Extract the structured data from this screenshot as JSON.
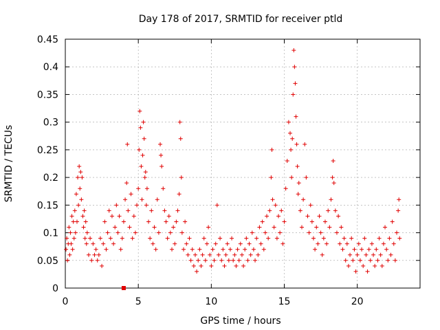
{
  "chart_data": {
    "type": "scatter",
    "title": "Day 178 of 2017, SRMTID for receiver ptld",
    "xlabel": "GPS time / hours",
    "ylabel": "SRMTID / TECUs",
    "xlim": [
      0,
      24.3
    ],
    "ylim": [
      0,
      0.45
    ],
    "xticks": [
      0,
      5,
      10,
      15,
      20
    ],
    "xtick_labels": [
      "0",
      "5",
      "10",
      "15",
      "20"
    ],
    "yticks": [
      0,
      0.05,
      0.1,
      0.15,
      0.2,
      0.25,
      0.3,
      0.35,
      0.4,
      0.45
    ],
    "ytick_labels": [
      "0",
      "0.05",
      "0.1",
      "0.15",
      "0.2",
      "0.25",
      "0.3",
      "0.35",
      "0.4",
      "0.45"
    ],
    "grid": true,
    "marker_color": "#e00000",
    "series": [
      {
        "name": "SRMTID",
        "marker": "plus",
        "points": [
          [
            0.05,
            0.07
          ],
          [
            0.1,
            0.09
          ],
          [
            0.15,
            0.05
          ],
          [
            0.2,
            0.08
          ],
          [
            0.25,
            0.11
          ],
          [
            0.3,
            0.06
          ],
          [
            0.35,
            0.1
          ],
          [
            0.4,
            0.08
          ],
          [
            0.45,
            0.13
          ],
          [
            0.5,
            0.07
          ],
          [
            0.55,
            0.12
          ],
          [
            0.6,
            0.09
          ],
          [
            0.65,
            0.14
          ],
          [
            0.7,
            0.1
          ],
          [
            0.75,
            0.17
          ],
          [
            0.8,
            0.12
          ],
          [
            0.85,
            0.2
          ],
          [
            0.9,
            0.15
          ],
          [
            0.95,
            0.22
          ],
          [
            1.0,
            0.18
          ],
          [
            1.05,
            0.21
          ],
          [
            1.1,
            0.16
          ],
          [
            1.15,
            0.2
          ],
          [
            1.2,
            0.13
          ],
          [
            1.25,
            0.11
          ],
          [
            1.3,
            0.14
          ],
          [
            1.35,
            0.09
          ],
          [
            1.4,
            0.12
          ],
          [
            1.45,
            0.08
          ],
          [
            1.5,
            0.1
          ],
          [
            1.6,
            0.06
          ],
          [
            1.7,
            0.09
          ],
          [
            1.8,
            0.05
          ],
          [
            1.9,
            0.08
          ],
          [
            2.0,
            0.06
          ],
          [
            2.1,
            0.07
          ],
          [
            2.2,
            0.05
          ],
          [
            2.3,
            0.06
          ],
          [
            2.4,
            0.09
          ],
          [
            2.5,
            0.04
          ],
          [
            2.6,
            0.08
          ],
          [
            2.7,
            0.12
          ],
          [
            2.8,
            0.07
          ],
          [
            2.9,
            0.1
          ],
          [
            3.0,
            0.14
          ],
          [
            3.1,
            0.09
          ],
          [
            3.2,
            0.13
          ],
          [
            3.3,
            0.08
          ],
          [
            3.4,
            0.11
          ],
          [
            3.5,
            0.15
          ],
          [
            3.6,
            0.1
          ],
          [
            3.7,
            0.13
          ],
          [
            3.8,
            0.07
          ],
          [
            3.9,
            0.09
          ],
          [
            4.0,
            0.12
          ],
          [
            4.1,
            0.16
          ],
          [
            4.2,
            0.19
          ],
          [
            4.25,
            0.26
          ],
          [
            4.3,
            0.14
          ],
          [
            4.4,
            0.11
          ],
          [
            4.5,
            0.17
          ],
          [
            4.6,
            0.09
          ],
          [
            4.7,
            0.13
          ],
          [
            4.8,
            0.1
          ],
          [
            4.9,
            0.15
          ],
          [
            5.0,
            0.18
          ],
          [
            5.05,
            0.25
          ],
          [
            5.1,
            0.32
          ],
          [
            5.15,
            0.29
          ],
          [
            5.2,
            0.22
          ],
          [
            5.25,
            0.16
          ],
          [
            5.3,
            0.24
          ],
          [
            5.35,
            0.3
          ],
          [
            5.4,
            0.27
          ],
          [
            5.45,
            0.2
          ],
          [
            5.5,
            0.21
          ],
          [
            5.55,
            0.15
          ],
          [
            5.6,
            0.18
          ],
          [
            5.7,
            0.12
          ],
          [
            5.8,
            0.09
          ],
          [
            5.9,
            0.14
          ],
          [
            6.0,
            0.08
          ],
          [
            6.1,
            0.11
          ],
          [
            6.2,
            0.07
          ],
          [
            6.3,
            0.16
          ],
          [
            6.4,
            0.1
          ],
          [
            6.5,
            0.26
          ],
          [
            6.55,
            0.24
          ],
          [
            6.6,
            0.22
          ],
          [
            6.7,
            0.18
          ],
          [
            6.8,
            0.14
          ],
          [
            6.9,
            0.12
          ],
          [
            7.0,
            0.09
          ],
          [
            7.1,
            0.13
          ],
          [
            7.2,
            0.1
          ],
          [
            7.3,
            0.07
          ],
          [
            7.4,
            0.11
          ],
          [
            7.5,
            0.08
          ],
          [
            7.6,
            0.12
          ],
          [
            7.7,
            0.14
          ],
          [
            7.8,
            0.17
          ],
          [
            7.85,
            0.3
          ],
          [
            7.9,
            0.27
          ],
          [
            7.95,
            0.2
          ],
          [
            8.0,
            0.1
          ],
          [
            8.1,
            0.07
          ],
          [
            8.2,
            0.12
          ],
          [
            8.3,
            0.08
          ],
          [
            8.4,
            0.06
          ],
          [
            8.5,
            0.09
          ],
          [
            8.6,
            0.05
          ],
          [
            8.7,
            0.07
          ],
          [
            8.8,
            0.04
          ],
          [
            8.9,
            0.06
          ],
          [
            9.0,
            0.03
          ],
          [
            9.1,
            0.05
          ],
          [
            9.2,
            0.07
          ],
          [
            9.3,
            0.04
          ],
          [
            9.4,
            0.06
          ],
          [
            9.5,
            0.09
          ],
          [
            9.6,
            0.05
          ],
          [
            9.7,
            0.08
          ],
          [
            9.8,
            0.11
          ],
          [
            9.9,
            0.06
          ],
          [
            10.0,
            0.04
          ],
          [
            10.1,
            0.07
          ],
          [
            10.2,
            0.05
          ],
          [
            10.3,
            0.08
          ],
          [
            10.4,
            0.15
          ],
          [
            10.5,
            0.06
          ],
          [
            10.6,
            0.09
          ],
          [
            10.7,
            0.05
          ],
          [
            10.8,
            0.07
          ],
          [
            10.9,
            0.04
          ],
          [
            11.0,
            0.06
          ],
          [
            11.1,
            0.08
          ],
          [
            11.2,
            0.05
          ],
          [
            11.3,
            0.07
          ],
          [
            11.4,
            0.09
          ],
          [
            11.5,
            0.05
          ],
          [
            11.6,
            0.06
          ],
          [
            11.7,
            0.04
          ],
          [
            11.8,
            0.07
          ],
          [
            11.9,
            0.05
          ],
          [
            12.0,
            0.08
          ],
          [
            12.1,
            0.06
          ],
          [
            12.2,
            0.04
          ],
          [
            12.3,
            0.07
          ],
          [
            12.4,
            0.09
          ],
          [
            12.5,
            0.05
          ],
          [
            12.6,
            0.08
          ],
          [
            12.7,
            0.06
          ],
          [
            12.8,
            0.1
          ],
          [
            12.9,
            0.07
          ],
          [
            13.0,
            0.05
          ],
          [
            13.1,
            0.09
          ],
          [
            13.2,
            0.06
          ],
          [
            13.3,
            0.11
          ],
          [
            13.4,
            0.08
          ],
          [
            13.5,
            0.12
          ],
          [
            13.6,
            0.07
          ],
          [
            13.7,
            0.1
          ],
          [
            13.8,
            0.13
          ],
          [
            13.9,
            0.09
          ],
          [
            14.0,
            0.14
          ],
          [
            14.1,
            0.2
          ],
          [
            14.15,
            0.25
          ],
          [
            14.2,
            0.16
          ],
          [
            14.3,
            0.11
          ],
          [
            14.4,
            0.15
          ],
          [
            14.5,
            0.09
          ],
          [
            14.6,
            0.13
          ],
          [
            14.7,
            0.1
          ],
          [
            14.8,
            0.14
          ],
          [
            14.9,
            0.08
          ],
          [
            15.0,
            0.12
          ],
          [
            15.1,
            0.18
          ],
          [
            15.2,
            0.23
          ],
          [
            15.3,
            0.3
          ],
          [
            15.4,
            0.28
          ],
          [
            15.45,
            0.25
          ],
          [
            15.5,
            0.2
          ],
          [
            15.55,
            0.27
          ],
          [
            15.6,
            0.35
          ],
          [
            15.65,
            0.43
          ],
          [
            15.7,
            0.4
          ],
          [
            15.75,
            0.37
          ],
          [
            15.8,
            0.31
          ],
          [
            15.85,
            0.26
          ],
          [
            15.9,
            0.22
          ],
          [
            15.95,
            0.17
          ],
          [
            16.0,
            0.19
          ],
          [
            16.1,
            0.14
          ],
          [
            16.2,
            0.11
          ],
          [
            16.3,
            0.16
          ],
          [
            16.4,
            0.26
          ],
          [
            16.5,
            0.2
          ],
          [
            16.6,
            0.13
          ],
          [
            16.7,
            0.1
          ],
          [
            16.8,
            0.15
          ],
          [
            16.9,
            0.12
          ],
          [
            17.0,
            0.09
          ],
          [
            17.1,
            0.07
          ],
          [
            17.2,
            0.11
          ],
          [
            17.3,
            0.08
          ],
          [
            17.4,
            0.13
          ],
          [
            17.5,
            0.1
          ],
          [
            17.6,
            0.06
          ],
          [
            17.7,
            0.09
          ],
          [
            17.8,
            0.12
          ],
          [
            17.9,
            0.08
          ],
          [
            18.0,
            0.14
          ],
          [
            18.1,
            0.11
          ],
          [
            18.2,
            0.16
          ],
          [
            18.3,
            0.2
          ],
          [
            18.35,
            0.23
          ],
          [
            18.4,
            0.19
          ],
          [
            18.5,
            0.14
          ],
          [
            18.6,
            0.1
          ],
          [
            18.7,
            0.13
          ],
          [
            18.8,
            0.08
          ],
          [
            18.9,
            0.11
          ],
          [
            19.0,
            0.07
          ],
          [
            19.1,
            0.09
          ],
          [
            19.2,
            0.05
          ],
          [
            19.3,
            0.08
          ],
          [
            19.4,
            0.04
          ],
          [
            19.5,
            0.06
          ],
          [
            19.6,
            0.09
          ],
          [
            19.7,
            0.05
          ],
          [
            19.8,
            0.07
          ],
          [
            19.9,
            0.03
          ],
          [
            20.0,
            0.06
          ],
          [
            20.1,
            0.08
          ],
          [
            20.2,
            0.05
          ],
          [
            20.3,
            0.07
          ],
          [
            20.4,
            0.04
          ],
          [
            20.5,
            0.09
          ],
          [
            20.6,
            0.06
          ],
          [
            20.7,
            0.03
          ],
          [
            20.8,
            0.07
          ],
          [
            20.9,
            0.05
          ],
          [
            21.0,
            0.08
          ],
          [
            21.1,
            0.06
          ],
          [
            21.2,
            0.04
          ],
          [
            21.3,
            0.07
          ],
          [
            21.4,
            0.05
          ],
          [
            21.5,
            0.09
          ],
          [
            21.6,
            0.06
          ],
          [
            21.7,
            0.04
          ],
          [
            21.8,
            0.08
          ],
          [
            21.9,
            0.11
          ],
          [
            22.0,
            0.07
          ],
          [
            22.1,
            0.05
          ],
          [
            22.2,
            0.09
          ],
          [
            22.3,
            0.06
          ],
          [
            22.4,
            0.12
          ],
          [
            22.5,
            0.08
          ],
          [
            22.6,
            0.05
          ],
          [
            22.7,
            0.1
          ],
          [
            22.8,
            0.14
          ],
          [
            22.85,
            0.16
          ],
          [
            22.9,
            0.09
          ]
        ]
      },
      {
        "name": "zero-marker",
        "marker": "square",
        "points": [
          [
            4.0,
            0.0
          ]
        ]
      }
    ]
  }
}
